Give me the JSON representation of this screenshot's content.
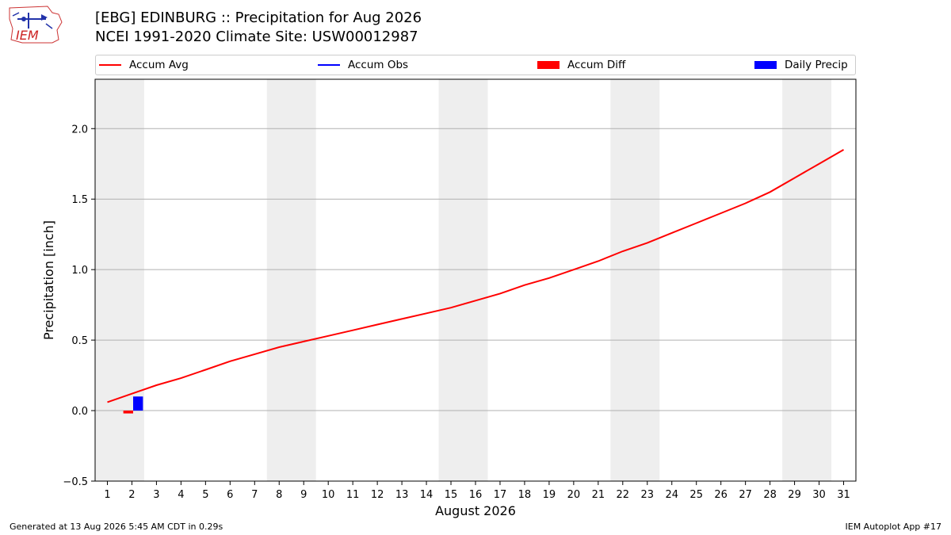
{
  "header": {
    "title_line1": "[EBG] EDINBURG :: Precipitation for Aug 2026",
    "title_line2": "NCEI 1991-2020 Climate Site: USW00012987",
    "logo_text": "IEM"
  },
  "colors": {
    "avg": "#ff0000",
    "obs": "#0000ff",
    "diff": "#ff0000",
    "daily": "#0000ff",
    "weekend": "#eeeeee",
    "grid": "#b0b0b0"
  },
  "legend": [
    {
      "label": "Accum Avg",
      "kind": "line",
      "color": "#ff0000"
    },
    {
      "label": "Accum Obs",
      "kind": "line",
      "color": "#0000ff"
    },
    {
      "label": "Accum Diff",
      "kind": "box",
      "color": "#ff0000"
    },
    {
      "label": "Daily Precip",
      "kind": "box",
      "color": "#0000ff"
    }
  ],
  "footer": {
    "left": "Generated at 13 Aug 2026 5:45 AM CDT in 0.29s",
    "right": "IEM Autoplot App #17"
  },
  "chart_data": {
    "type": "line",
    "xlabel": "August 2026",
    "ylabel": "Precipitation [inch]",
    "xlim": [
      0.5,
      31.5
    ],
    "ylim": [
      -0.5,
      2.35
    ],
    "yticks": [
      -0.5,
      0.0,
      0.5,
      1.0,
      1.5,
      2.0
    ],
    "ytick_labels": [
      "−0.5",
      "0.0",
      "0.5",
      "1.0",
      "1.5",
      "2.0"
    ],
    "xticks": [
      1,
      2,
      3,
      4,
      5,
      6,
      7,
      8,
      9,
      10,
      11,
      12,
      13,
      14,
      15,
      16,
      17,
      18,
      19,
      20,
      21,
      22,
      23,
      24,
      25,
      26,
      27,
      28,
      29,
      30,
      31
    ],
    "grid": "y",
    "weekend_bands": [
      [
        0.5,
        2.5
      ],
      [
        7.5,
        9.5
      ],
      [
        14.5,
        16.5
      ],
      [
        21.5,
        23.5
      ],
      [
        28.5,
        30.5
      ]
    ],
    "series": [
      {
        "name": "Accum Avg",
        "kind": "line",
        "x": [
          1,
          2,
          3,
          4,
          5,
          6,
          7,
          8,
          9,
          10,
          11,
          12,
          13,
          14,
          15,
          16,
          17,
          18,
          19,
          20,
          21,
          22,
          23,
          24,
          25,
          26,
          27,
          28,
          29,
          30,
          31
        ],
        "values": [
          0.06,
          0.12,
          0.18,
          0.23,
          0.29,
          0.35,
          0.4,
          0.45,
          0.49,
          0.53,
          0.57,
          0.61,
          0.65,
          0.69,
          0.73,
          0.78,
          0.83,
          0.89,
          0.94,
          1.0,
          1.06,
          1.13,
          1.19,
          1.26,
          1.33,
          1.4,
          1.47,
          1.55,
          1.65,
          1.75,
          1.85
        ]
      },
      {
        "name": "Accum Diff",
        "kind": "bar",
        "x": [
          1.85
        ],
        "values": [
          -0.02
        ]
      },
      {
        "name": "Daily Precip",
        "kind": "bar",
        "x": [
          2.25
        ],
        "values": [
          0.1
        ]
      }
    ]
  }
}
